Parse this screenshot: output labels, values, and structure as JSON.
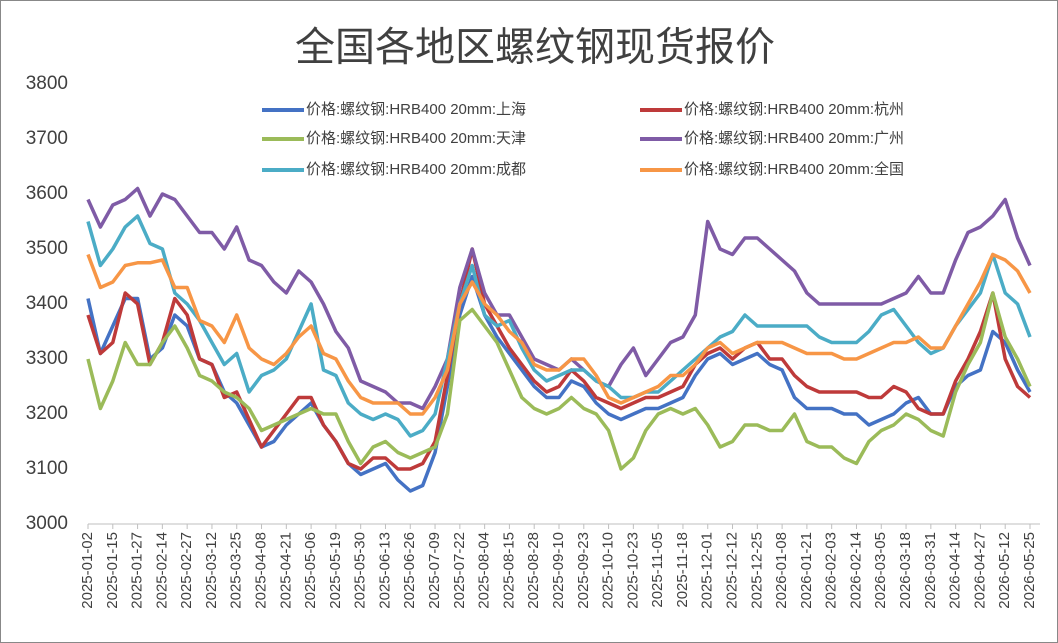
{
  "chart_data": {
    "type": "line",
    "title": "全国各地区螺纹钢现货报价",
    "categories": [
      "2025-01-02",
      null,
      "2025-01-15",
      null,
      "2025-01-27",
      null,
      "2025-02-14",
      null,
      "2025-02-27",
      null,
      "2025-03-12",
      null,
      "2025-03-25",
      null,
      "2025-04-08",
      null,
      "2025-04-21",
      null,
      "2025-05-06",
      null,
      "2025-05-19",
      null,
      "2025-05-30",
      null,
      "2025-06-13",
      null,
      "2025-06-26",
      null,
      "2025-07-09",
      null,
      "2025-07-22",
      null,
      "2025-08-04",
      null,
      "2025-08-15",
      null,
      "2025-08-28",
      null,
      "2025-09-10",
      null,
      "2025-09-23",
      null,
      "2025-10-10",
      null,
      "2025-10-23",
      null,
      "2025-11-05",
      null,
      "2025-11-18",
      null,
      "2025-12-01",
      null,
      "2025-12-12",
      null,
      "2025-12-25",
      null,
      "2026-01-08",
      null,
      "2026-01-21",
      null,
      "2026-02-03",
      null,
      "2026-02-14",
      null,
      "2026-03-05",
      null,
      "2026-03-18",
      null,
      "2026-03-31",
      null,
      "2026-04-14",
      null,
      "2026-04-27",
      null,
      "2026-05-12",
      null,
      "2026-05-25"
    ],
    "series": [
      {
        "name": "价格:螺纹钢:HRB400 20mm:上海",
        "color": "#4472c4",
        "values": [
          3410,
          3310,
          3360,
          3410,
          3410,
          3300,
          3320,
          3380,
          3360,
          3300,
          3290,
          3240,
          3220,
          3180,
          3140,
          3150,
          3180,
          3200,
          3220,
          3180,
          3150,
          3110,
          3090,
          3100,
          3110,
          3080,
          3060,
          3070,
          3130,
          3250,
          3380,
          3450,
          3380,
          3340,
          3310,
          3280,
          3250,
          3230,
          3230,
          3260,
          3250,
          3220,
          3200,
          3190,
          3200,
          3210,
          3210,
          3220,
          3230,
          3270,
          3300,
          3310,
          3290,
          3300,
          3310,
          3290,
          3280,
          3230,
          3210,
          3210,
          3210,
          3200,
          3200,
          3180,
          3190,
          3200,
          3220,
          3230,
          3200,
          3200,
          3250,
          3270,
          3280,
          3350,
          3330,
          3280,
          3240
        ]
      },
      {
        "name": "价格:螺纹钢:HRB400 20mm:杭州",
        "color": "#be3a3a",
        "values": [
          3380,
          3310,
          3330,
          3420,
          3400,
          3290,
          3330,
          3410,
          3380,
          3300,
          3290,
          3230,
          3240,
          3190,
          3140,
          3170,
          3200,
          3230,
          3230,
          3180,
          3150,
          3110,
          3100,
          3120,
          3120,
          3100,
          3100,
          3110,
          3150,
          3270,
          3400,
          3500,
          3400,
          3360,
          3320,
          3290,
          3260,
          3240,
          3250,
          3280,
          3260,
          3230,
          3220,
          3210,
          3220,
          3230,
          3230,
          3240,
          3250,
          3290,
          3310,
          3320,
          3300,
          3320,
          3330,
          3300,
          3300,
          3270,
          3250,
          3240,
          3240,
          3240,
          3240,
          3230,
          3230,
          3250,
          3240,
          3210,
          3200,
          3200,
          3260,
          3300,
          3350,
          3420,
          3300,
          3250,
          3230
        ]
      },
      {
        "name": "价格:螺纹钢:HRB400 20mm:天津",
        "color": "#9bbb59",
        "values": [
          3300,
          3210,
          3260,
          3330,
          3290,
          3290,
          3330,
          3360,
          3320,
          3270,
          3260,
          3240,
          3230,
          3210,
          3170,
          3180,
          3190,
          3200,
          3210,
          3200,
          3200,
          3150,
          3110,
          3140,
          3150,
          3130,
          3120,
          3130,
          3140,
          3200,
          3370,
          3390,
          3360,
          3330,
          3280,
          3230,
          3210,
          3200,
          3210,
          3230,
          3210,
          3200,
          3170,
          3100,
          3120,
          3170,
          3200,
          3210,
          3200,
          3210,
          3180,
          3140,
          3150,
          3180,
          3180,
          3170,
          3170,
          3200,
          3150,
          3140,
          3140,
          3120,
          3110,
          3150,
          3170,
          3180,
          3200,
          3190,
          3170,
          3160,
          3240,
          3290,
          3330,
          3420,
          3340,
          3300,
          3250
        ]
      },
      {
        "name": "价格:螺纹钢:HRB400 20mm:广州",
        "color": "#7f5ba6",
        "values": [
          3590,
          3540,
          3580,
          3590,
          3610,
          3560,
          3600,
          3590,
          3560,
          3530,
          3530,
          3500,
          3540,
          3480,
          3470,
          3440,
          3420,
          3460,
          3440,
          3400,
          3350,
          3320,
          3260,
          3250,
          3240,
          3220,
          3220,
          3210,
          3250,
          3300,
          3430,
          3500,
          3420,
          3380,
          3380,
          3340,
          3300,
          3290,
          3280,
          3300,
          3280,
          3260,
          3250,
          3290,
          3320,
          3270,
          3300,
          3330,
          3340,
          3380,
          3550,
          3500,
          3490,
          3520,
          3520,
          3500,
          3480,
          3460,
          3420,
          3400,
          3400,
          3400,
          3400,
          3400,
          3400,
          3410,
          3420,
          3450,
          3420,
          3420,
          3480,
          3530,
          3540,
          3560,
          3590,
          3520,
          3470
        ]
      },
      {
        "name": "价格:螺纹钢:HRB400 20mm:成都",
        "color": "#4bacc6",
        "values": [
          3550,
          3470,
          3500,
          3540,
          3560,
          3510,
          3500,
          3420,
          3400,
          3370,
          3330,
          3290,
          3310,
          3240,
          3270,
          3280,
          3300,
          3350,
          3400,
          3280,
          3270,
          3220,
          3200,
          3190,
          3200,
          3190,
          3160,
          3170,
          3200,
          3300,
          3400,
          3470,
          3380,
          3360,
          3370,
          3320,
          3280,
          3260,
          3270,
          3280,
          3280,
          3260,
          3250,
          3230,
          3230,
          3240,
          3240,
          3260,
          3280,
          3300,
          3320,
          3340,
          3350,
          3380,
          3360,
          3360,
          3360,
          3360,
          3360,
          3340,
          3330,
          3330,
          3330,
          3350,
          3380,
          3390,
          3360,
          3330,
          3310,
          3320,
          3360,
          3390,
          3420,
          3490,
          3420,
          3400,
          3340
        ]
      },
      {
        "name": "价格:螺纹钢:HRB400 20mm:全国",
        "color": "#f79646",
        "values": [
          3490,
          3430,
          3440,
          3470,
          3475,
          3475,
          3480,
          3430,
          3430,
          3370,
          3360,
          3330,
          3380,
          3320,
          3300,
          3290,
          3310,
          3340,
          3360,
          3310,
          3300,
          3260,
          3230,
          3220,
          3220,
          3220,
          3200,
          3200,
          3230,
          3280,
          3400,
          3440,
          3400,
          3380,
          3350,
          3330,
          3290,
          3280,
          3280,
          3300,
          3300,
          3270,
          3230,
          3220,
          3230,
          3240,
          3250,
          3270,
          3270,
          3290,
          3320,
          3330,
          3310,
          3320,
          3330,
          3330,
          3330,
          3320,
          3310,
          3310,
          3310,
          3300,
          3300,
          3310,
          3320,
          3330,
          3330,
          3340,
          3320,
          3320,
          3360,
          3400,
          3440,
          3490,
          3480,
          3460,
          3420
        ]
      }
    ],
    "ylim": [
      3000,
      3800
    ],
    "yticks": [
      3000,
      3100,
      3200,
      3300,
      3400,
      3500,
      3600,
      3700,
      3800
    ],
    "grid": false
  }
}
